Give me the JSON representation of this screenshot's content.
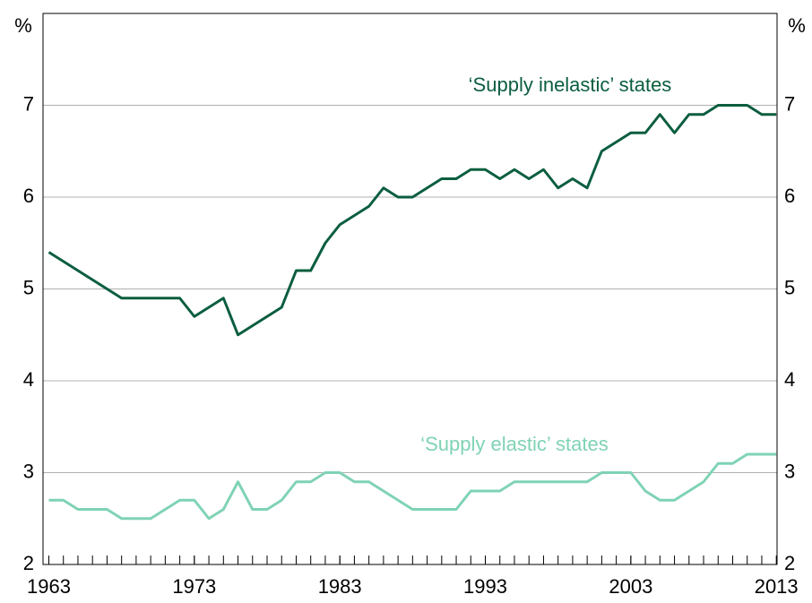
{
  "chart_data": {
    "type": "line",
    "ylabel": "%",
    "y2label": "%",
    "x": [
      1963,
      1964,
      1965,
      1966,
      1967,
      1968,
      1969,
      1970,
      1971,
      1972,
      1973,
      1974,
      1975,
      1976,
      1977,
      1978,
      1979,
      1980,
      1981,
      1982,
      1983,
      1984,
      1985,
      1986,
      1987,
      1988,
      1989,
      1990,
      1991,
      1992,
      1993,
      1994,
      1995,
      1996,
      1997,
      1998,
      1999,
      2000,
      2001,
      2002,
      2003,
      2004,
      2005,
      2006,
      2007,
      2008,
      2009,
      2010,
      2011,
      2012,
      2013
    ],
    "series": [
      {
        "name": "‘Supply inelastic’ states",
        "color": "#0b5e3f",
        "values": [
          5.4,
          5.3,
          5.2,
          5.1,
          5.0,
          4.9,
          4.9,
          4.9,
          4.9,
          4.9,
          4.7,
          4.8,
          4.9,
          4.5,
          4.6,
          4.7,
          4.8,
          5.2,
          5.2,
          5.5,
          5.7,
          5.8,
          5.9,
          6.1,
          6.0,
          6.0,
          6.1,
          6.2,
          6.2,
          6.3,
          6.3,
          6.2,
          6.3,
          6.2,
          6.3,
          6.1,
          6.2,
          6.1,
          6.5,
          6.6,
          6.7,
          6.7,
          6.9,
          6.7,
          6.9,
          6.9,
          7.0,
          7.0,
          7.0,
          6.9,
          6.9
        ]
      },
      {
        "name": "‘Supply elastic’ states",
        "color": "#7fd3b4",
        "values": [
          2.7,
          2.7,
          2.6,
          2.6,
          2.6,
          2.5,
          2.5,
          2.5,
          2.6,
          2.7,
          2.7,
          2.5,
          2.6,
          2.9,
          2.6,
          2.6,
          2.7,
          2.9,
          2.9,
          3.0,
          3.0,
          2.9,
          2.9,
          2.8,
          2.7,
          2.6,
          2.6,
          2.6,
          2.6,
          2.8,
          2.8,
          2.8,
          2.9,
          2.9,
          2.9,
          2.9,
          2.9,
          2.9,
          3.0,
          3.0,
          3.0,
          2.8,
          2.7,
          2.7,
          2.8,
          2.9,
          3.1,
          3.1,
          3.2,
          3.2,
          3.2
        ]
      }
    ],
    "xlim": [
      1962.6,
      2013.05
    ],
    "xticks": [
      1963,
      1973,
      1983,
      1993,
      2003,
      2013
    ],
    "xminorticks": [
      1964,
      1965,
      1966,
      1967,
      1968,
      1969,
      1970,
      1971,
      1972,
      1973,
      1974,
      1975,
      1976,
      1977,
      1978,
      1979,
      1980,
      1981,
      1982,
      1983,
      1984,
      1985,
      1986,
      1987,
      1988,
      1989,
      1990,
      1991,
      1992,
      1993,
      1994,
      1995,
      1996,
      1997,
      1998,
      1999,
      2000,
      2001,
      2002,
      2003,
      2004,
      2005,
      2006,
      2007,
      2008,
      2009,
      2010,
      2011,
      2012
    ],
    "ylim": [
      2,
      8
    ],
    "yticks": [
      2,
      3,
      4,
      5,
      6,
      7
    ],
    "grid": true
  }
}
